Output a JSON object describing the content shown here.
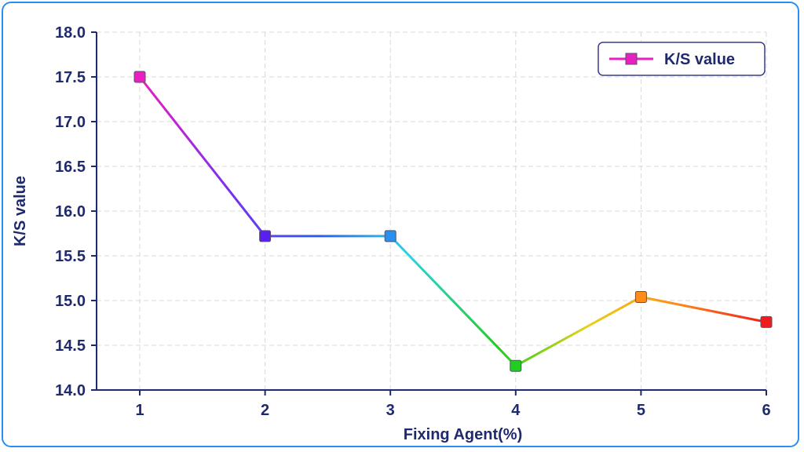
{
  "chart_data": {
    "type": "line",
    "title": "",
    "xlabel": "Fixing Agent(%)",
    "ylabel": "K/S value",
    "x": [
      1,
      2,
      3,
      4,
      5,
      6
    ],
    "x_ticks": [
      "1",
      "2",
      "3",
      "4",
      "5",
      "6"
    ],
    "y_ticks": [
      "14.0",
      "14.5",
      "15.0",
      "15.5",
      "16.0",
      "16.5",
      "17.0",
      "17.5",
      "18.0"
    ],
    "ylim": [
      14.0,
      18.0
    ],
    "grid": true,
    "legend_position": "top-right",
    "series": [
      {
        "name": "K/S value",
        "values": [
          17.5,
          15.72,
          15.72,
          14.27,
          15.04,
          14.76
        ],
        "marker": "square",
        "point_colors": [
          "#e91fbf",
          "#5a1ff0",
          "#2a8ff0",
          "#22cc22",
          "#ff8c1a",
          "#ee1c1c"
        ],
        "line_gradient": [
          "#e91fbf",
          "#7b2ff0",
          "#2a5ff0",
          "#2ad4e0",
          "#22cc22",
          "#e8d21a",
          "#ff8c1a",
          "#ee1c1c"
        ]
      }
    ],
    "legend_marker_color": "#e91fbf",
    "axis_color": "#1f2a6e",
    "grid_color": "#d8d8d8"
  }
}
